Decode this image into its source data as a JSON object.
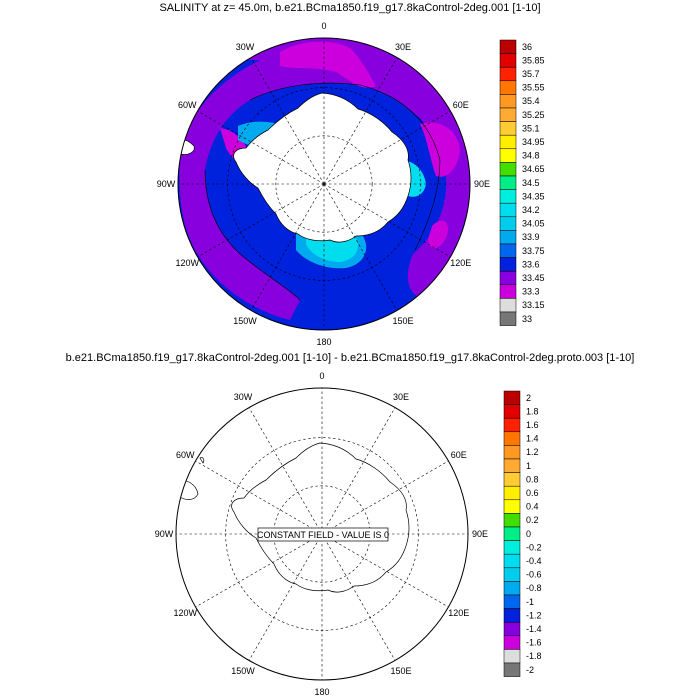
{
  "panel1": {
    "title": "SALINITY at z=  45.0m, b.e21.BCma1850.f19_g17.8kaControl-2deg.001 [1-10]",
    "lon_labels": [
      "0",
      "30E",
      "60E",
      "90E",
      "120E",
      "150E",
      "180",
      "150W",
      "120W",
      "90W",
      "60W",
      "30W"
    ],
    "colorbar": {
      "labels": [
        "36",
        "35.85",
        "35.7",
        "35.55",
        "35.4",
        "35.25",
        "35.1",
        "34.95",
        "34.8",
        "34.65",
        "34.5",
        "34.35",
        "34.2",
        "34.05",
        "33.9",
        "33.75",
        "33.6",
        "33.45",
        "33.3",
        "33.15",
        "33"
      ],
      "colors": [
        "#bb0000",
        "#e00000",
        "#ff2200",
        "#ff7700",
        "#ff9922",
        "#ffaa33",
        "#ffcc33",
        "#ffee00",
        "#ffff00",
        "#44dd00",
        "#00ee88",
        "#00eedd",
        "#00ddee",
        "#00ccee",
        "#00aaee",
        "#0066ee",
        "#0022dd",
        "#8800dd",
        "#cc00dd",
        "#dddddd",
        "#777777"
      ]
    },
    "fill_colors": {
      "ocean_main": "#0022dd",
      "violet": "#8800dd",
      "magenta": "#cc00dd",
      "blue_mid": "#0066ee",
      "light_blue": "#00aaee",
      "cyan": "#00ccee",
      "cyan_light": "#00ddee",
      "green": "#44dd00"
    }
  },
  "panel2": {
    "title": "b.e21.BCma1850.f19_g17.8kaControl-2deg.001 [1-10] - b.e21.BCma1850.f19_g17.8kaControl-2deg.proto.003 [1-10]",
    "lon_labels": [
      "0",
      "30E",
      "60E",
      "90E",
      "120E",
      "150E",
      "180",
      "150W",
      "120W",
      "90W",
      "60W",
      "30W"
    ],
    "center_label": "CONSTANT FIELD - VALUE IS 0",
    "colorbar": {
      "labels": [
        "2",
        "1.8",
        "1.6",
        "1.4",
        "1.2",
        "1",
        "0.8",
        "0.6",
        "0.4",
        "0.2",
        "0",
        "-0.2",
        "-0.4",
        "-0.6",
        "-0.8",
        "-1",
        "-1.2",
        "-1.4",
        "-1.6",
        "-1.8",
        "-2"
      ],
      "colors": [
        "#bb0000",
        "#e00000",
        "#ff2200",
        "#ff7700",
        "#ff9922",
        "#ffaa33",
        "#ffcc33",
        "#ffee00",
        "#ffff00",
        "#44dd00",
        "#00ee88",
        "#00eedd",
        "#00ddee",
        "#00ccee",
        "#00aaee",
        "#0066ee",
        "#0022dd",
        "#8800dd",
        "#cc00dd",
        "#dddddd",
        "#777777"
      ]
    }
  }
}
